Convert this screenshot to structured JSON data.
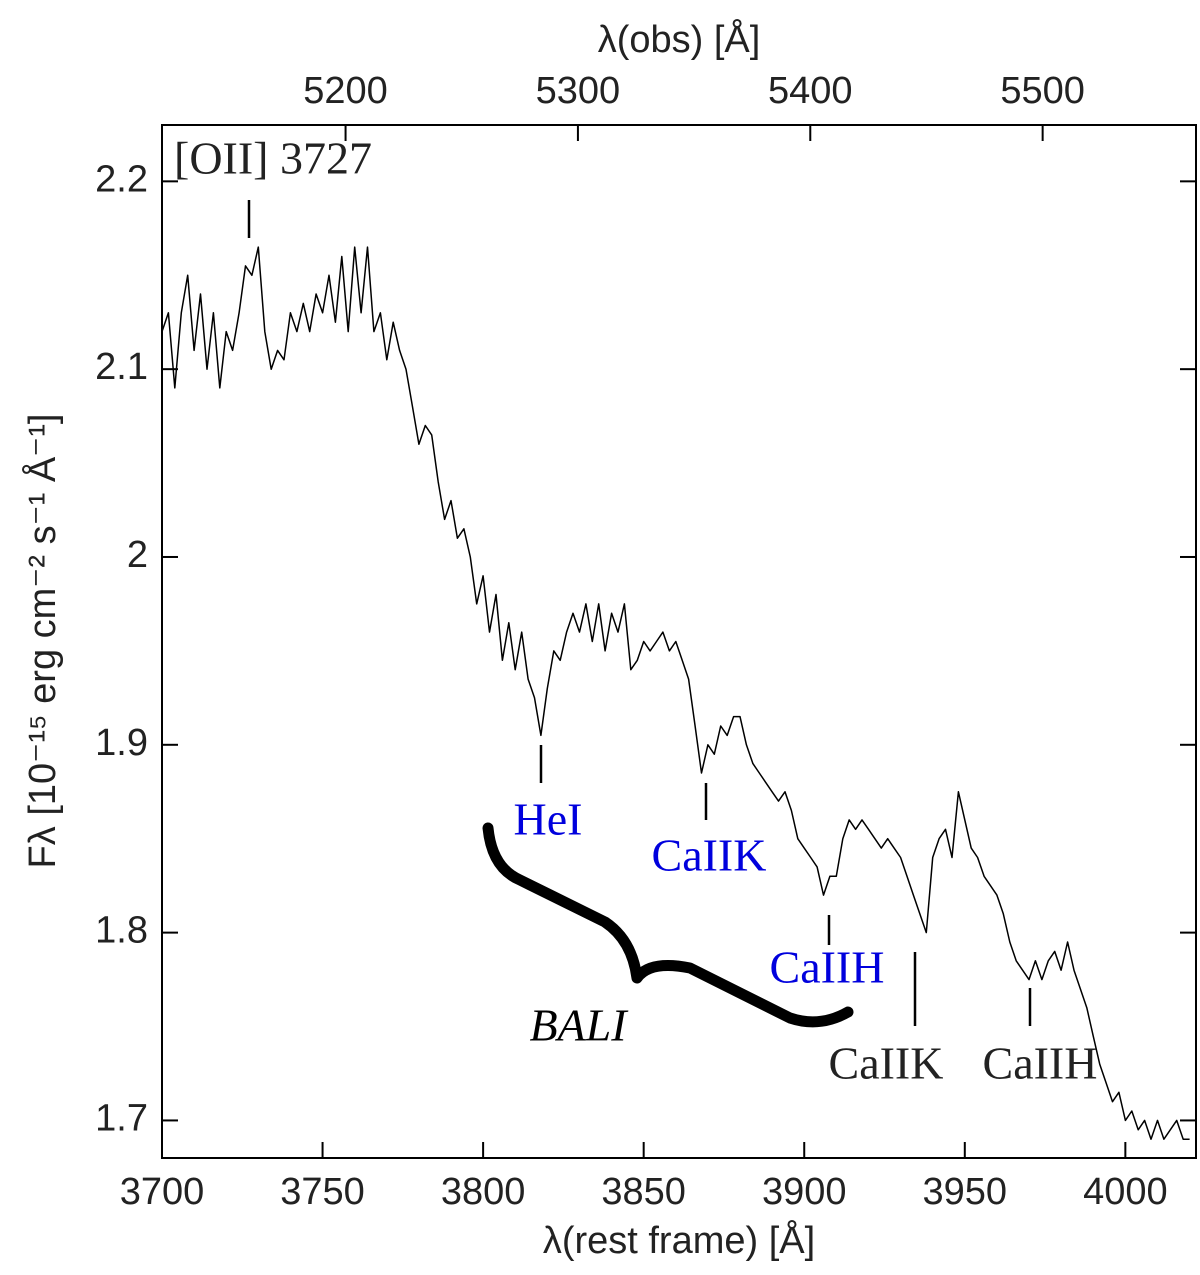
{
  "chart_data": {
    "type": "line",
    "xlabel": "λ(rest frame) [Å]",
    "x2label": "λ(obs) [Å]",
    "ylabel": "Fλ [10⁻¹⁵ erg cm⁻² s⁻¹ Å⁻¹]",
    "x": [
      3700,
      3702,
      3704,
      3706,
      3708,
      3710,
      3712,
      3714,
      3716,
      3718,
      3720,
      3722,
      3724,
      3726,
      3728,
      3730,
      3732,
      3734,
      3736,
      3738,
      3740,
      3742,
      3744,
      3746,
      3748,
      3750,
      3752,
      3754,
      3756,
      3758,
      3760,
      3762,
      3764,
      3766,
      3768,
      3770,
      3772,
      3774,
      3776,
      3778,
      3780,
      3782,
      3784,
      3786,
      3788,
      3790,
      3792,
      3794,
      3796,
      3798,
      3800,
      3802,
      3804,
      3806,
      3808,
      3810,
      3812,
      3814,
      3816,
      3818,
      3820,
      3822,
      3824,
      3826,
      3828,
      3830,
      3832,
      3834,
      3836,
      3838,
      3840,
      3842,
      3844,
      3846,
      3848,
      3850,
      3852,
      3854,
      3856,
      3858,
      3860,
      3862,
      3864,
      3866,
      3868,
      3870,
      3872,
      3874,
      3876,
      3878,
      3880,
      3882,
      3884,
      3886,
      3888,
      3890,
      3892,
      3894,
      3896,
      3898,
      3900,
      3902,
      3904,
      3906,
      3908,
      3910,
      3912,
      3914,
      3916,
      3918,
      3920,
      3922,
      3924,
      3926,
      3928,
      3930,
      3932,
      3934,
      3936,
      3938,
      3940,
      3942,
      3944,
      3946,
      3948,
      3950,
      3952,
      3954,
      3956,
      3958,
      3960,
      3962,
      3964,
      3966,
      3968,
      3970,
      3972,
      3974,
      3976,
      3978,
      3980,
      3982,
      3984,
      3986,
      3988,
      3990,
      3992,
      3994,
      3996,
      3998,
      4000,
      4002,
      4004,
      4006,
      4008,
      4010,
      4012,
      4014,
      4016,
      4018,
      4020
    ],
    "values": [
      2.12,
      2.13,
      2.09,
      2.13,
      2.15,
      2.11,
      2.14,
      2.1,
      2.13,
      2.09,
      2.12,
      2.11,
      2.13,
      2.155,
      2.15,
      2.165,
      2.12,
      2.1,
      2.11,
      2.105,
      2.13,
      2.12,
      2.135,
      2.12,
      2.14,
      2.13,
      2.15,
      2.125,
      2.16,
      2.12,
      2.165,
      2.13,
      2.165,
      2.12,
      2.13,
      2.105,
      2.125,
      2.11,
      2.1,
      2.08,
      2.06,
      2.07,
      2.065,
      2.04,
      2.02,
      2.03,
      2.01,
      2.015,
      2.0,
      1.975,
      1.99,
      1.96,
      1.98,
      1.945,
      1.965,
      1.94,
      1.96,
      1.935,
      1.925,
      1.905,
      1.93,
      1.95,
      1.945,
      1.96,
      1.97,
      1.96,
      1.975,
      1.955,
      1.975,
      1.95,
      1.97,
      1.96,
      1.975,
      1.94,
      1.945,
      1.955,
      1.95,
      1.955,
      1.96,
      1.95,
      1.955,
      1.945,
      1.935,
      1.91,
      1.885,
      1.9,
      1.895,
      1.91,
      1.905,
      1.915,
      1.915,
      1.9,
      1.89,
      1.885,
      1.88,
      1.875,
      1.87,
      1.875,
      1.865,
      1.85,
      1.845,
      1.84,
      1.835,
      1.82,
      1.83,
      1.83,
      1.85,
      1.86,
      1.855,
      1.86,
      1.855,
      1.85,
      1.845,
      1.85,
      1.845,
      1.84,
      1.83,
      1.82,
      1.81,
      1.8,
      1.84,
      1.85,
      1.855,
      1.84,
      1.875,
      1.86,
      1.845,
      1.84,
      1.83,
      1.825,
      1.82,
      1.81,
      1.795,
      1.785,
      1.78,
      1.775,
      1.785,
      1.775,
      1.785,
      1.79,
      1.78,
      1.795,
      1.78,
      1.77,
      1.76,
      1.745,
      1.73,
      1.72,
      1.71,
      1.715,
      1.7,
      1.705,
      1.695,
      1.7,
      1.69,
      1.7,
      1.69,
      1.695,
      1.7,
      1.69,
      1.69
    ],
    "color": "#000000",
    "xlim": [
      3700,
      4022
    ],
    "xticks": [
      3700,
      3750,
      3800,
      3850,
      3900,
      3950,
      4000
    ],
    "x2lim": [
      5121,
      5566
    ],
    "x2ticks": [
      5200,
      5300,
      5400,
      5500
    ],
    "ylim": [
      1.68,
      2.23
    ],
    "yticks": [
      1.7,
      1.8,
      1.9,
      2,
      2.1,
      2.2
    ],
    "annotations": [
      "[OII] 3727",
      "HeI",
      "CaIIK",
      "CaIIH",
      "CaIIK",
      "CaIIH",
      "BALI"
    ]
  }
}
